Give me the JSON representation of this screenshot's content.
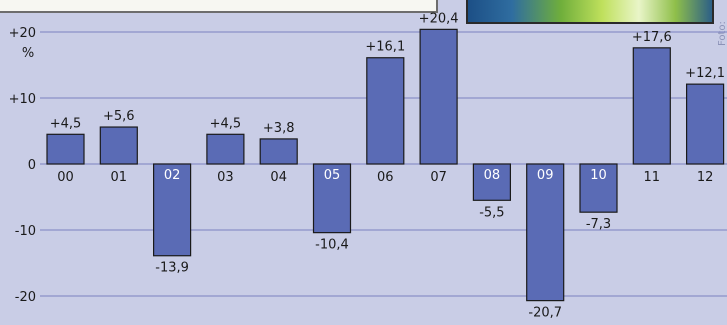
{
  "chart_data": {
    "type": "bar",
    "title": "",
    "xlabel": "",
    "ylabel": "%",
    "ylim": [
      -24,
      24
    ],
    "yticks": [
      20,
      10,
      0,
      -10,
      -20
    ],
    "ytick_labels": [
      "+20",
      "+10",
      "0",
      "-10",
      "-20"
    ],
    "categories": [
      "00",
      "01",
      "02",
      "03",
      "04",
      "05",
      "06",
      "07",
      "08",
      "09",
      "10",
      "11",
      "12"
    ],
    "values": [
      4.5,
      5.6,
      -13.9,
      4.5,
      3.8,
      -10.4,
      16.1,
      20.4,
      -5.5,
      -20.7,
      -7.3,
      17.6,
      12.1
    ],
    "value_labels": [
      "+4,5",
      "+5,6",
      "-13,9",
      "+4,5",
      "+3,8",
      "-10,4",
      "+16,1",
      "+20,4",
      "-5,5",
      "-20,7",
      "-7,3",
      "+17,6",
      "+12,1"
    ],
    "grid": true,
    "bar_color": "#5a6bb5",
    "grid_color": "#8a91c8",
    "background_color": "#c9cde6"
  },
  "photo_credit": "Foto: EMI"
}
